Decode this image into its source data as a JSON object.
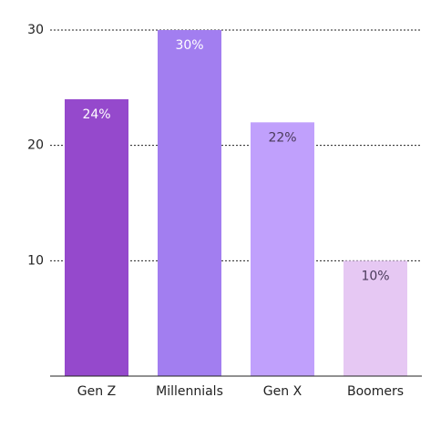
{
  "chart_data": {
    "type": "bar",
    "categories": [
      "Gen Z",
      "Millennials",
      "Gen X",
      "Boomers"
    ],
    "values": [
      24,
      30,
      22,
      10
    ],
    "value_labels": [
      "24%",
      "30%",
      "22%",
      "10%"
    ],
    "colors": [
      "#9549cc",
      "#a27ef0",
      "#c0a0fc",
      "#e6c8f3"
    ],
    "label_colors": [
      "#ffffff",
      "#ffffff",
      "#4a3a5a",
      "#4a3a5a"
    ],
    "ylim": [
      0,
      30
    ],
    "yticks": [
      10,
      20,
      30
    ],
    "grid": true
  }
}
